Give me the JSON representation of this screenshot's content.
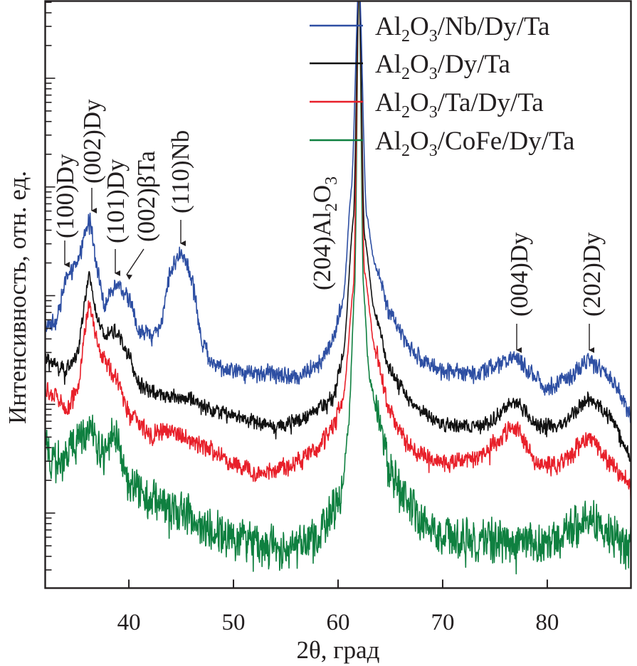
{
  "chart_data": {
    "type": "line",
    "title": "",
    "xlabel": "2θ, град",
    "ylabel": "Интенсивность, отн. ед.",
    "xlim": [
      32,
      88
    ],
    "x_ticks": [
      40,
      50,
      60,
      70,
      80
    ],
    "x_tick_labels": [
      "40",
      "50",
      "60",
      "70",
      "80"
    ],
    "y_scale": "log",
    "y_units": "arbitrary (log10 relative intensity, no numeric tick labels shown)",
    "ylim_log10": [
      -0.69,
      4.71
    ],
    "y_major_decades_log10": [
      0,
      1,
      2,
      3
    ],
    "grid": false,
    "legend": {
      "position": "top-right",
      "entries": [
        {
          "main": "Al",
          "sub1": "2",
          "mid": "O",
          "sub2": "3",
          "rest": "/Nb/Dy/Ta",
          "color": "#2e4fa3"
        },
        {
          "main": "Al",
          "sub1": "2",
          "mid": "O",
          "sub2": "3",
          "rest": "/Dy/Ta",
          "color": "#111111"
        },
        {
          "main": "Al",
          "sub1": "2",
          "mid": "O",
          "sub2": "3",
          "rest": "/Ta/Dy/Ta",
          "color": "#e8202a"
        },
        {
          "main": "Al",
          "sub1": "2",
          "mid": "O",
          "sub2": "3",
          "rest": "/CoFe/Dy/Ta",
          "color": "#0f8040"
        }
      ]
    },
    "series": [
      {
        "name": "Al2O3/Nb/Dy/Ta",
        "color": "#2e4fa3",
        "noise_log10": 0.09,
        "points": [
          [
            32,
            1.71
          ],
          [
            33,
            1.77
          ],
          [
            34,
            2.13
          ],
          [
            35,
            2.29
          ],
          [
            36.2,
            2.72
          ],
          [
            37.3,
            2.1
          ],
          [
            37.6,
            1.9
          ],
          [
            38.8,
            2.13
          ],
          [
            40,
            1.97
          ],
          [
            41,
            1.67
          ],
          [
            42,
            1.64
          ],
          [
            43,
            1.71
          ],
          [
            44,
            2.23
          ],
          [
            45,
            2.41
          ],
          [
            46,
            2.16
          ],
          [
            47,
            1.58
          ],
          [
            48,
            1.38
          ],
          [
            50,
            1.31
          ],
          [
            53,
            1.28
          ],
          [
            56,
            1.25
          ],
          [
            58,
            1.35
          ],
          [
            59.5,
            1.58
          ],
          [
            60.5,
            1.97
          ],
          [
            61.3,
            3.01
          ],
          [
            62,
            5.0
          ],
          [
            62.7,
            2.75
          ],
          [
            63.5,
            2.29
          ],
          [
            65,
            1.84
          ],
          [
            66.5,
            1.58
          ],
          [
            68,
            1.41
          ],
          [
            70,
            1.31
          ],
          [
            73,
            1.28
          ],
          [
            75,
            1.35
          ],
          [
            77,
            1.44
          ],
          [
            78.5,
            1.28
          ],
          [
            80,
            1.15
          ],
          [
            82,
            1.25
          ],
          [
            84,
            1.41
          ],
          [
            86,
            1.25
          ],
          [
            88,
            0.92
          ]
        ]
      },
      {
        "name": "Al2O3/Dy/Ta",
        "color": "#111111",
        "noise_log10": 0.08,
        "points": [
          [
            32,
            1.41
          ],
          [
            34,
            1.31
          ],
          [
            35,
            1.44
          ],
          [
            36.2,
            2.16
          ],
          [
            37.3,
            1.67
          ],
          [
            38.8,
            1.67
          ],
          [
            40,
            1.44
          ],
          [
            41,
            1.18
          ],
          [
            43,
            1.08
          ],
          [
            46,
            1.05
          ],
          [
            48,
            0.95
          ],
          [
            51,
            0.86
          ],
          [
            54,
            0.79
          ],
          [
            57,
            0.89
          ],
          [
            59.5,
            1.05
          ],
          [
            60.5,
            1.44
          ],
          [
            61.5,
            2.75
          ],
          [
            62,
            5.0
          ],
          [
            62.5,
            2.56
          ],
          [
            63.5,
            1.84
          ],
          [
            65,
            1.31
          ],
          [
            67,
            1.02
          ],
          [
            69,
            0.86
          ],
          [
            71,
            0.79
          ],
          [
            74,
            0.82
          ],
          [
            77,
            1.02
          ],
          [
            79,
            0.82
          ],
          [
            81,
            0.79
          ],
          [
            84,
            1.05
          ],
          [
            86,
            0.89
          ],
          [
            88,
            0.53
          ]
        ]
      },
      {
        "name": "Al2O3/Ta/Dy/Ta",
        "color": "#e8202a",
        "noise_log10": 0.1,
        "points": [
          [
            32,
            1.12
          ],
          [
            33,
            1.08
          ],
          [
            34,
            0.95
          ],
          [
            35,
            1.12
          ],
          [
            36.2,
            1.9
          ],
          [
            37.3,
            1.44
          ],
          [
            38.8,
            1.25
          ],
          [
            40,
            0.92
          ],
          [
            42,
            0.73
          ],
          [
            44,
            0.76
          ],
          [
            47,
            0.63
          ],
          [
            50,
            0.46
          ],
          [
            52,
            0.37
          ],
          [
            55,
            0.43
          ],
          [
            58,
            0.59
          ],
          [
            59.5,
            0.79
          ],
          [
            60.5,
            1.05
          ],
          [
            61.5,
            2.1
          ],
          [
            62,
            5.0
          ],
          [
            62.5,
            2.23
          ],
          [
            63.5,
            1.51
          ],
          [
            65,
            0.92
          ],
          [
            67,
            0.59
          ],
          [
            70,
            0.46
          ],
          [
            73,
            0.5
          ],
          [
            77,
            0.79
          ],
          [
            79,
            0.46
          ],
          [
            81,
            0.43
          ],
          [
            84,
            0.69
          ],
          [
            86,
            0.46
          ],
          [
            88,
            0.24
          ]
        ]
      },
      {
        "name": "Al2O3/CoFe/Dy/Ta",
        "color": "#0f8040",
        "noise_log10": 0.22,
        "points": [
          [
            32,
            0.59
          ],
          [
            33,
            0.46
          ],
          [
            34,
            0.53
          ],
          [
            36.2,
            0.79
          ],
          [
            37.5,
            0.53
          ],
          [
            38.8,
            0.73
          ],
          [
            40,
            0.27
          ],
          [
            42,
            0.14
          ],
          [
            45,
            0.01
          ],
          [
            48,
            -0.16
          ],
          [
            51,
            -0.25
          ],
          [
            55,
            -0.32
          ],
          [
            58,
            -0.22
          ],
          [
            60.3,
            0.14
          ],
          [
            61,
            0.79
          ],
          [
            61.6,
            2.1
          ],
          [
            62,
            5.0
          ],
          [
            62.4,
            2.1
          ],
          [
            63,
            1.25
          ],
          [
            64,
            0.79
          ],
          [
            65,
            0.4
          ],
          [
            66,
            0.2
          ],
          [
            68,
            -0.12
          ],
          [
            72,
            -0.25
          ],
          [
            77,
            -0.25
          ],
          [
            80,
            -0.29
          ],
          [
            84,
            -0.06
          ],
          [
            88,
            -0.32
          ]
        ]
      }
    ],
    "annotations": [
      {
        "label": "(100)Dy",
        "x": 34.0,
        "arrow": "down"
      },
      {
        "label": "(002)Dy",
        "x": 36.3,
        "arrow": "down"
      },
      {
        "label": "(101)Dy",
        "x": 38.6,
        "arrow": "down"
      },
      {
        "label": "(002)βTa",
        "x": 39.3,
        "arrow": "down-left"
      },
      {
        "label": "(110)Nb",
        "x": 45.0,
        "arrow": "down"
      },
      {
        "label_main": "(204)Al",
        "sub1": "2",
        "mid": "O",
        "sub2": "3",
        "label": "(204)Al2O3",
        "x": 60.0,
        "arrow": "none"
      },
      {
        "label": "(004)Dy",
        "x": 77.2,
        "arrow": "down"
      },
      {
        "label": "(202)Dy",
        "x": 84.2,
        "arrow": "down"
      }
    ]
  }
}
